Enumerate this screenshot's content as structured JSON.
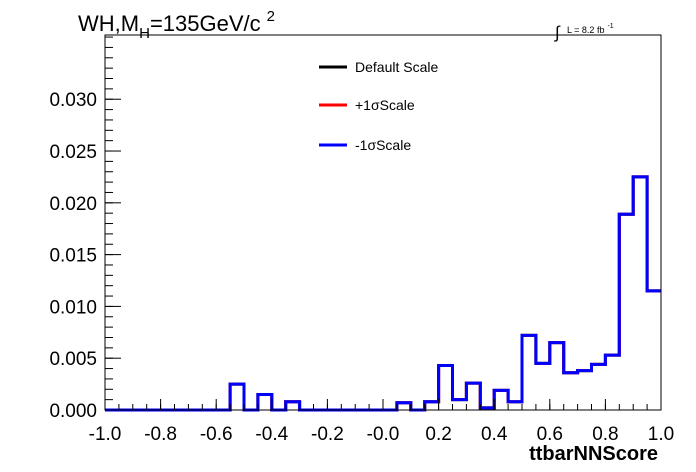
{
  "chart_data": {
    "type": "line",
    "drawstyle": "steps-post",
    "title": {
      "main": "WH,M",
      "subscript": "H",
      "rest": "=135GeV/c",
      "superscript": "2"
    },
    "lumi": {
      "symbol": "∫",
      "text": "L = 8.2 fb",
      "superscript": "-1"
    },
    "xlabel": "ttbarNNScore",
    "ylabel": "",
    "xlim": [
      -1.0,
      1.0
    ],
    "ylim": [
      0,
      0.0362
    ],
    "grid": false,
    "legend_position": "top-center",
    "x_ticks": [
      "-1.0",
      "-0.8",
      "-0.6",
      "-0.4",
      "-0.2",
      "-0.0",
      "0.2",
      "0.4",
      "0.6",
      "0.8",
      "1.0"
    ],
    "x_tick_values": [
      -1.0,
      -0.8,
      -0.6,
      -0.4,
      -0.2,
      0.0,
      0.2,
      0.4,
      0.6,
      0.8,
      1.0
    ],
    "y_ticks": [
      "0.000",
      "0.005",
      "0.010",
      "0.015",
      "0.020",
      "0.025",
      "0.030"
    ],
    "y_tick_values": [
      0.0,
      0.005,
      0.01,
      0.015,
      0.02,
      0.025,
      0.03
    ],
    "bin_edges": [
      -1.0,
      -0.95,
      -0.9,
      -0.85,
      -0.8,
      -0.75,
      -0.7,
      -0.65,
      -0.6,
      -0.55,
      -0.5,
      -0.45,
      -0.4,
      -0.35,
      -0.3,
      -0.25,
      -0.2,
      -0.15,
      -0.1,
      -0.05,
      0.0,
      0.05,
      0.1,
      0.15,
      0.2,
      0.25,
      0.3,
      0.35,
      0.4,
      0.45,
      0.5,
      0.55,
      0.6,
      0.65,
      0.7,
      0.75,
      0.8,
      0.85,
      0.9,
      0.95,
      1.0
    ],
    "series": [
      {
        "name": "Default Scale",
        "color": "#000000",
        "values": [
          0,
          0,
          0,
          0,
          0,
          0,
          0,
          0,
          0,
          0.0025,
          0,
          0.0015,
          0,
          0.0008,
          0,
          0,
          0,
          0,
          0,
          0,
          0,
          0.0007,
          0,
          0.0008,
          0.0043,
          0.001,
          0.0026,
          0.0002,
          0.0019,
          0.0008,
          0.0072,
          0.0045,
          0.0065,
          0.0036,
          0.0038,
          0.0044,
          0.0053,
          0.0189,
          0.0225,
          0.0115
        ]
      },
      {
        "name": "+1σScale",
        "color": "#ff0000",
        "values": [
          0,
          0,
          0,
          0,
          0,
          0,
          0,
          0,
          0,
          0.0025,
          0,
          0.0015,
          0,
          0.0008,
          0,
          0,
          0,
          0,
          0,
          0,
          0,
          0.0007,
          0,
          0.0008,
          0.0043,
          0.001,
          0.0026,
          0.0002,
          0.0019,
          0.0008,
          0.0072,
          0.0045,
          0.0065,
          0.0036,
          0.0038,
          0.0044,
          0.0053,
          0.0189,
          0.0225,
          0.0115
        ]
      },
      {
        "name": "-1σScale",
        "color": "#0000ff",
        "values": [
          0,
          0,
          0,
          0,
          0,
          0,
          0,
          0,
          0,
          0.0025,
          0,
          0.0015,
          0,
          0.0008,
          0,
          0,
          0,
          0,
          0,
          0,
          0,
          0.0007,
          0,
          0.0008,
          0.0043,
          0.001,
          0.0026,
          0.0002,
          0.0019,
          0.0008,
          0.0072,
          0.0045,
          0.0065,
          0.0036,
          0.0038,
          0.0044,
          0.0053,
          0.0189,
          0.0225,
          0.0115
        ]
      }
    ]
  }
}
